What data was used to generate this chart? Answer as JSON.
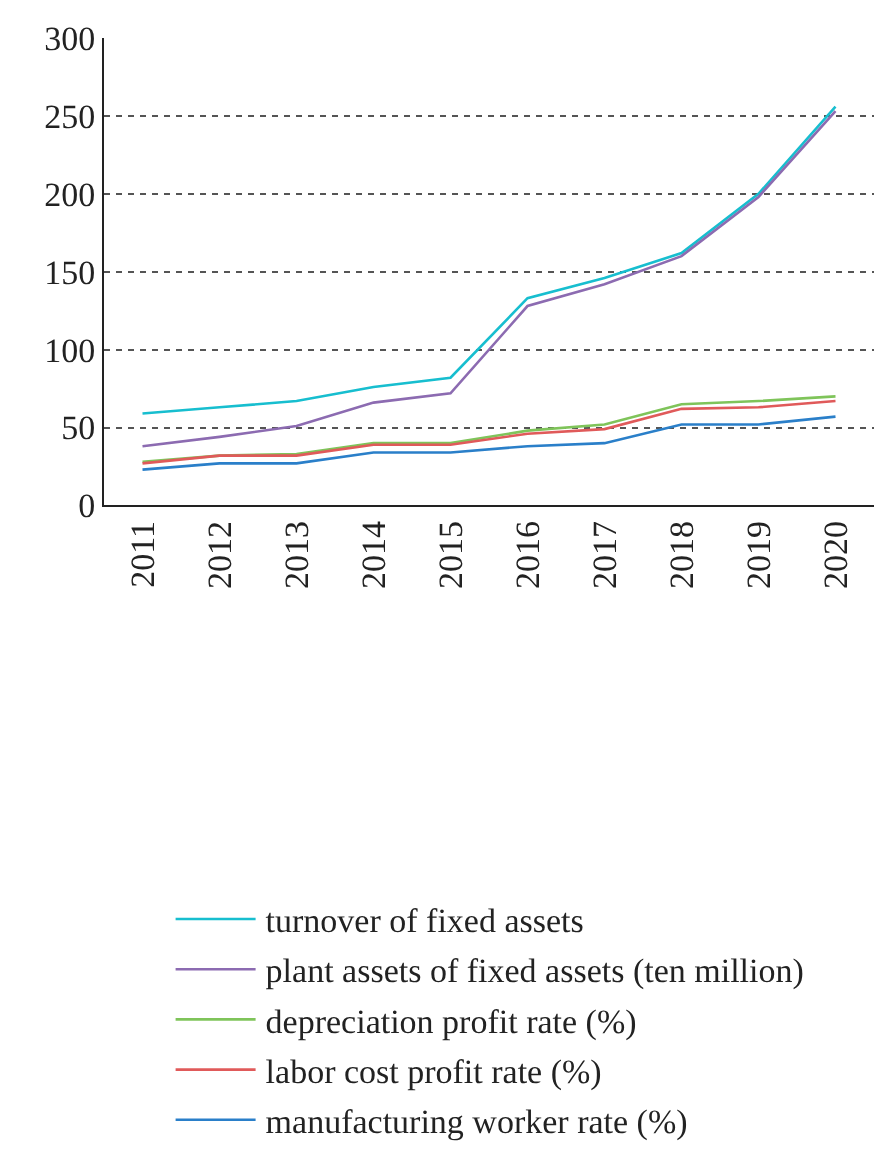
{
  "chart_data": {
    "type": "line",
    "categories": [
      "2011",
      "2012",
      "2013",
      "2014",
      "2015",
      "2016",
      "2017",
      "2018",
      "2019",
      "2020"
    ],
    "ylim": [
      0,
      300
    ],
    "yticks": [
      0,
      50,
      100,
      150,
      200,
      250,
      300
    ],
    "grid": "y",
    "legend": "bottom",
    "marker": "none",
    "line_style": "solid",
    "series": [
      {
        "name": "turnover of fixed assets",
        "color": "#17becf",
        "values": [
          59,
          63,
          67,
          76,
          82,
          133,
          146,
          162,
          200,
          256
        ]
      },
      {
        "name": "plant assets of fixed assets (ten million)",
        "color": "#8c6bb1",
        "values": [
          38,
          44,
          51,
          66,
          72,
          128,
          142,
          160,
          198,
          253
        ]
      },
      {
        "name": "depreciation profit rate (%)",
        "color": "#7fc45a",
        "values": [
          28,
          32,
          33,
          40,
          40,
          48,
          52,
          65,
          67,
          70
        ]
      },
      {
        "name": "labor cost profit rate (%)",
        "color": "#e05a5a",
        "values": [
          27,
          32,
          32,
          39,
          39,
          46,
          49,
          62,
          63,
          67
        ]
      },
      {
        "name": "manufacturing worker rate (%)",
        "color": "#2a7fc9",
        "values": [
          23,
          27,
          27,
          34,
          34,
          38,
          40,
          52,
          52,
          57
        ]
      }
    ]
  }
}
